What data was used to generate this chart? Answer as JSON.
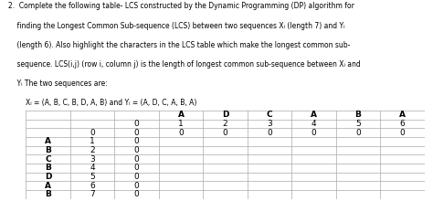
{
  "title_lines": [
    "2.  Complete the following table- LCS constructed by the Dynamic Programming (DP) algorithm for",
    "    finding the Longest Common Sub-sequence (LCS) between two sequences Xᵢ (length 7) and Yᵢ",
    "    (length 6). Also highlight the characters in the LCS table which make the longest common sub-",
    "    sequence. LCS(i,j) (row i, column j) is the length of longest common sub-sequence between Xᵢ and",
    "    Yᵢ The two sequences are:",
    "        Xᵢ = (A, B, C, B, D, A, B) and Yᵢ = (A, D, C, A, B, A)"
  ],
  "y_chars": [
    "",
    "",
    "",
    "A",
    "D",
    "C",
    "A",
    "B",
    "A"
  ],
  "j_indices": [
    "",
    "",
    "0",
    "1",
    "2",
    "3",
    "4",
    "5",
    "6"
  ],
  "i0_row": [
    "",
    "0",
    "0",
    "0",
    "0",
    "0",
    "0",
    "0",
    "0"
  ],
  "x_chars": [
    "A",
    "B",
    "C",
    "B",
    "D",
    "A",
    "B"
  ],
  "x_indices": [
    "1",
    "2",
    "3",
    "4",
    "5",
    "6",
    "7"
  ],
  "bg_color": "#ffffff",
  "grid_color": "#aaaaaa",
  "text_color": "#000000",
  "font_size_title": 5.5,
  "font_size_table": 6.5
}
